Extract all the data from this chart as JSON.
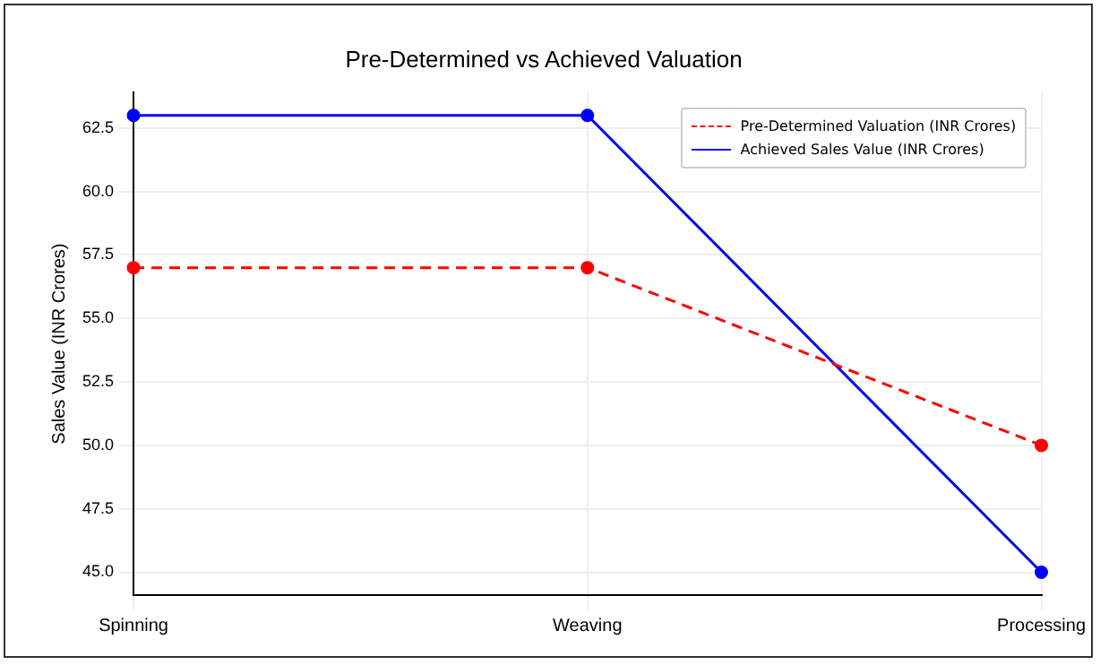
{
  "chart_data": {
    "type": "line",
    "title": "Pre-Determined vs Achieved Valuation",
    "ylabel": "Sales Value (INR Crores)",
    "categories": [
      "Spinning",
      "Weaving",
      "Processing"
    ],
    "series": [
      {
        "name": "Pre-Determined Valuation (INR Crores)",
        "color": "#ff0000",
        "values": [
          57,
          57,
          50
        ],
        "line_style": "dashed"
      },
      {
        "name": "Achieved Sales Value (INR Crores)",
        "color": "#0000ff",
        "values": [
          63,
          63,
          45
        ],
        "line_style": "solid"
      }
    ],
    "ylim": [
      44.1,
      63.9
    ],
    "yticks": [
      {
        "value": 45,
        "label": "45.0"
      },
      {
        "value": 47.5,
        "label": "47.5"
      },
      {
        "value": 50,
        "label": "50.0"
      },
      {
        "value": 52.5,
        "label": "52.5"
      },
      {
        "value": 55,
        "label": "55.0"
      },
      {
        "value": 57.5,
        "label": "57.5"
      },
      {
        "value": 60,
        "label": "60.0"
      },
      {
        "value": 62.5,
        "label": "62.5"
      }
    ],
    "grid": true,
    "legend": "top right",
    "marker": "circle"
  }
}
